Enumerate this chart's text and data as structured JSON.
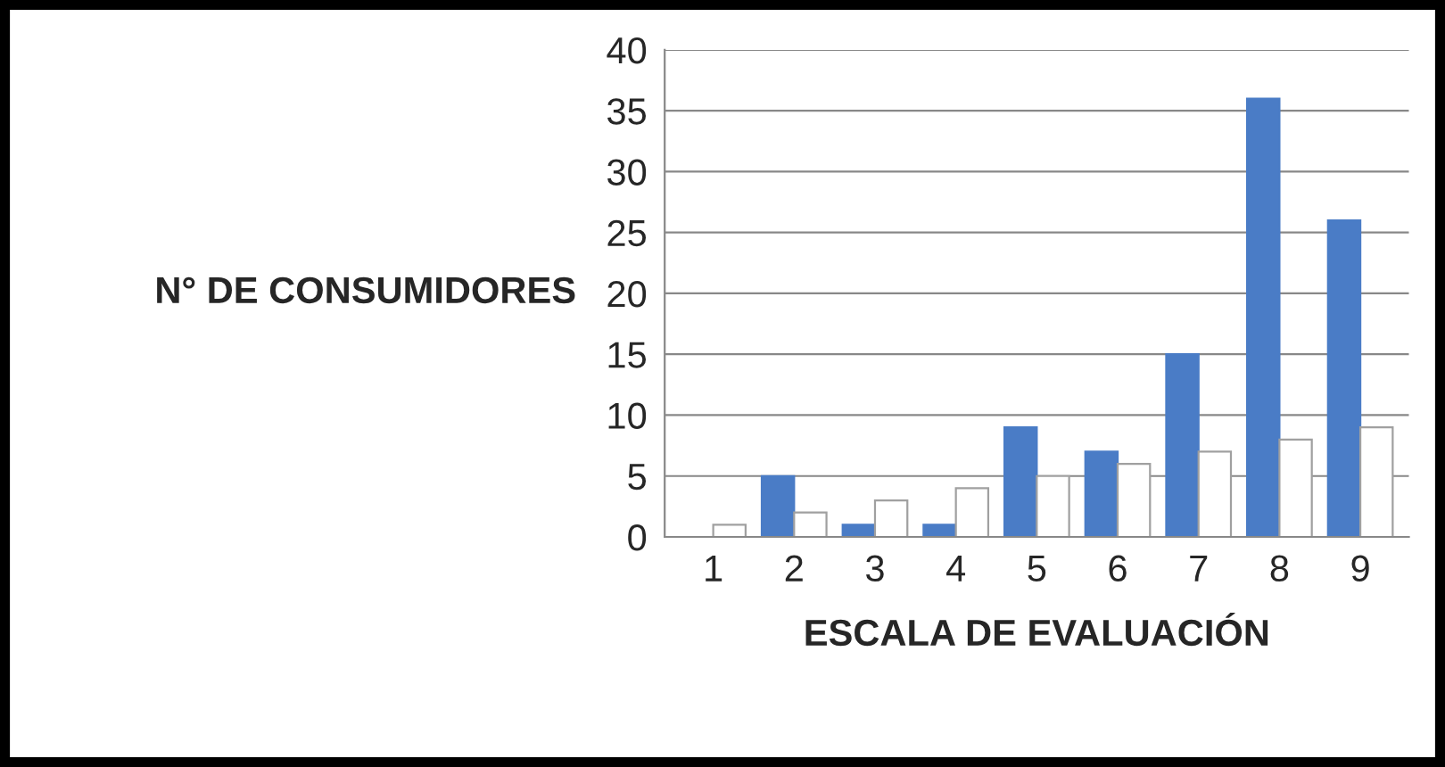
{
  "chart_data": {
    "type": "bar",
    "xlabel": "ESCALA DE EVALUACIÓN",
    "ylabel": "N° DE CONSUMIDORES",
    "categories": [
      "1",
      "2",
      "3",
      "4",
      "5",
      "6",
      "7",
      "8",
      "9"
    ],
    "series": [
      {
        "color": "#4a7cc6",
        "values": [
          0,
          5,
          1,
          1,
          9,
          7,
          15,
          36,
          26
        ]
      },
      {
        "color": "#ffffff",
        "values": [
          1,
          2,
          3,
          4,
          5,
          6,
          7,
          8,
          9
        ]
      }
    ],
    "ylim": [
      0,
      40
    ],
    "yticks": [
      0,
      5,
      10,
      15,
      20,
      25,
      30,
      35,
      40
    ],
    "grid": "y"
  }
}
